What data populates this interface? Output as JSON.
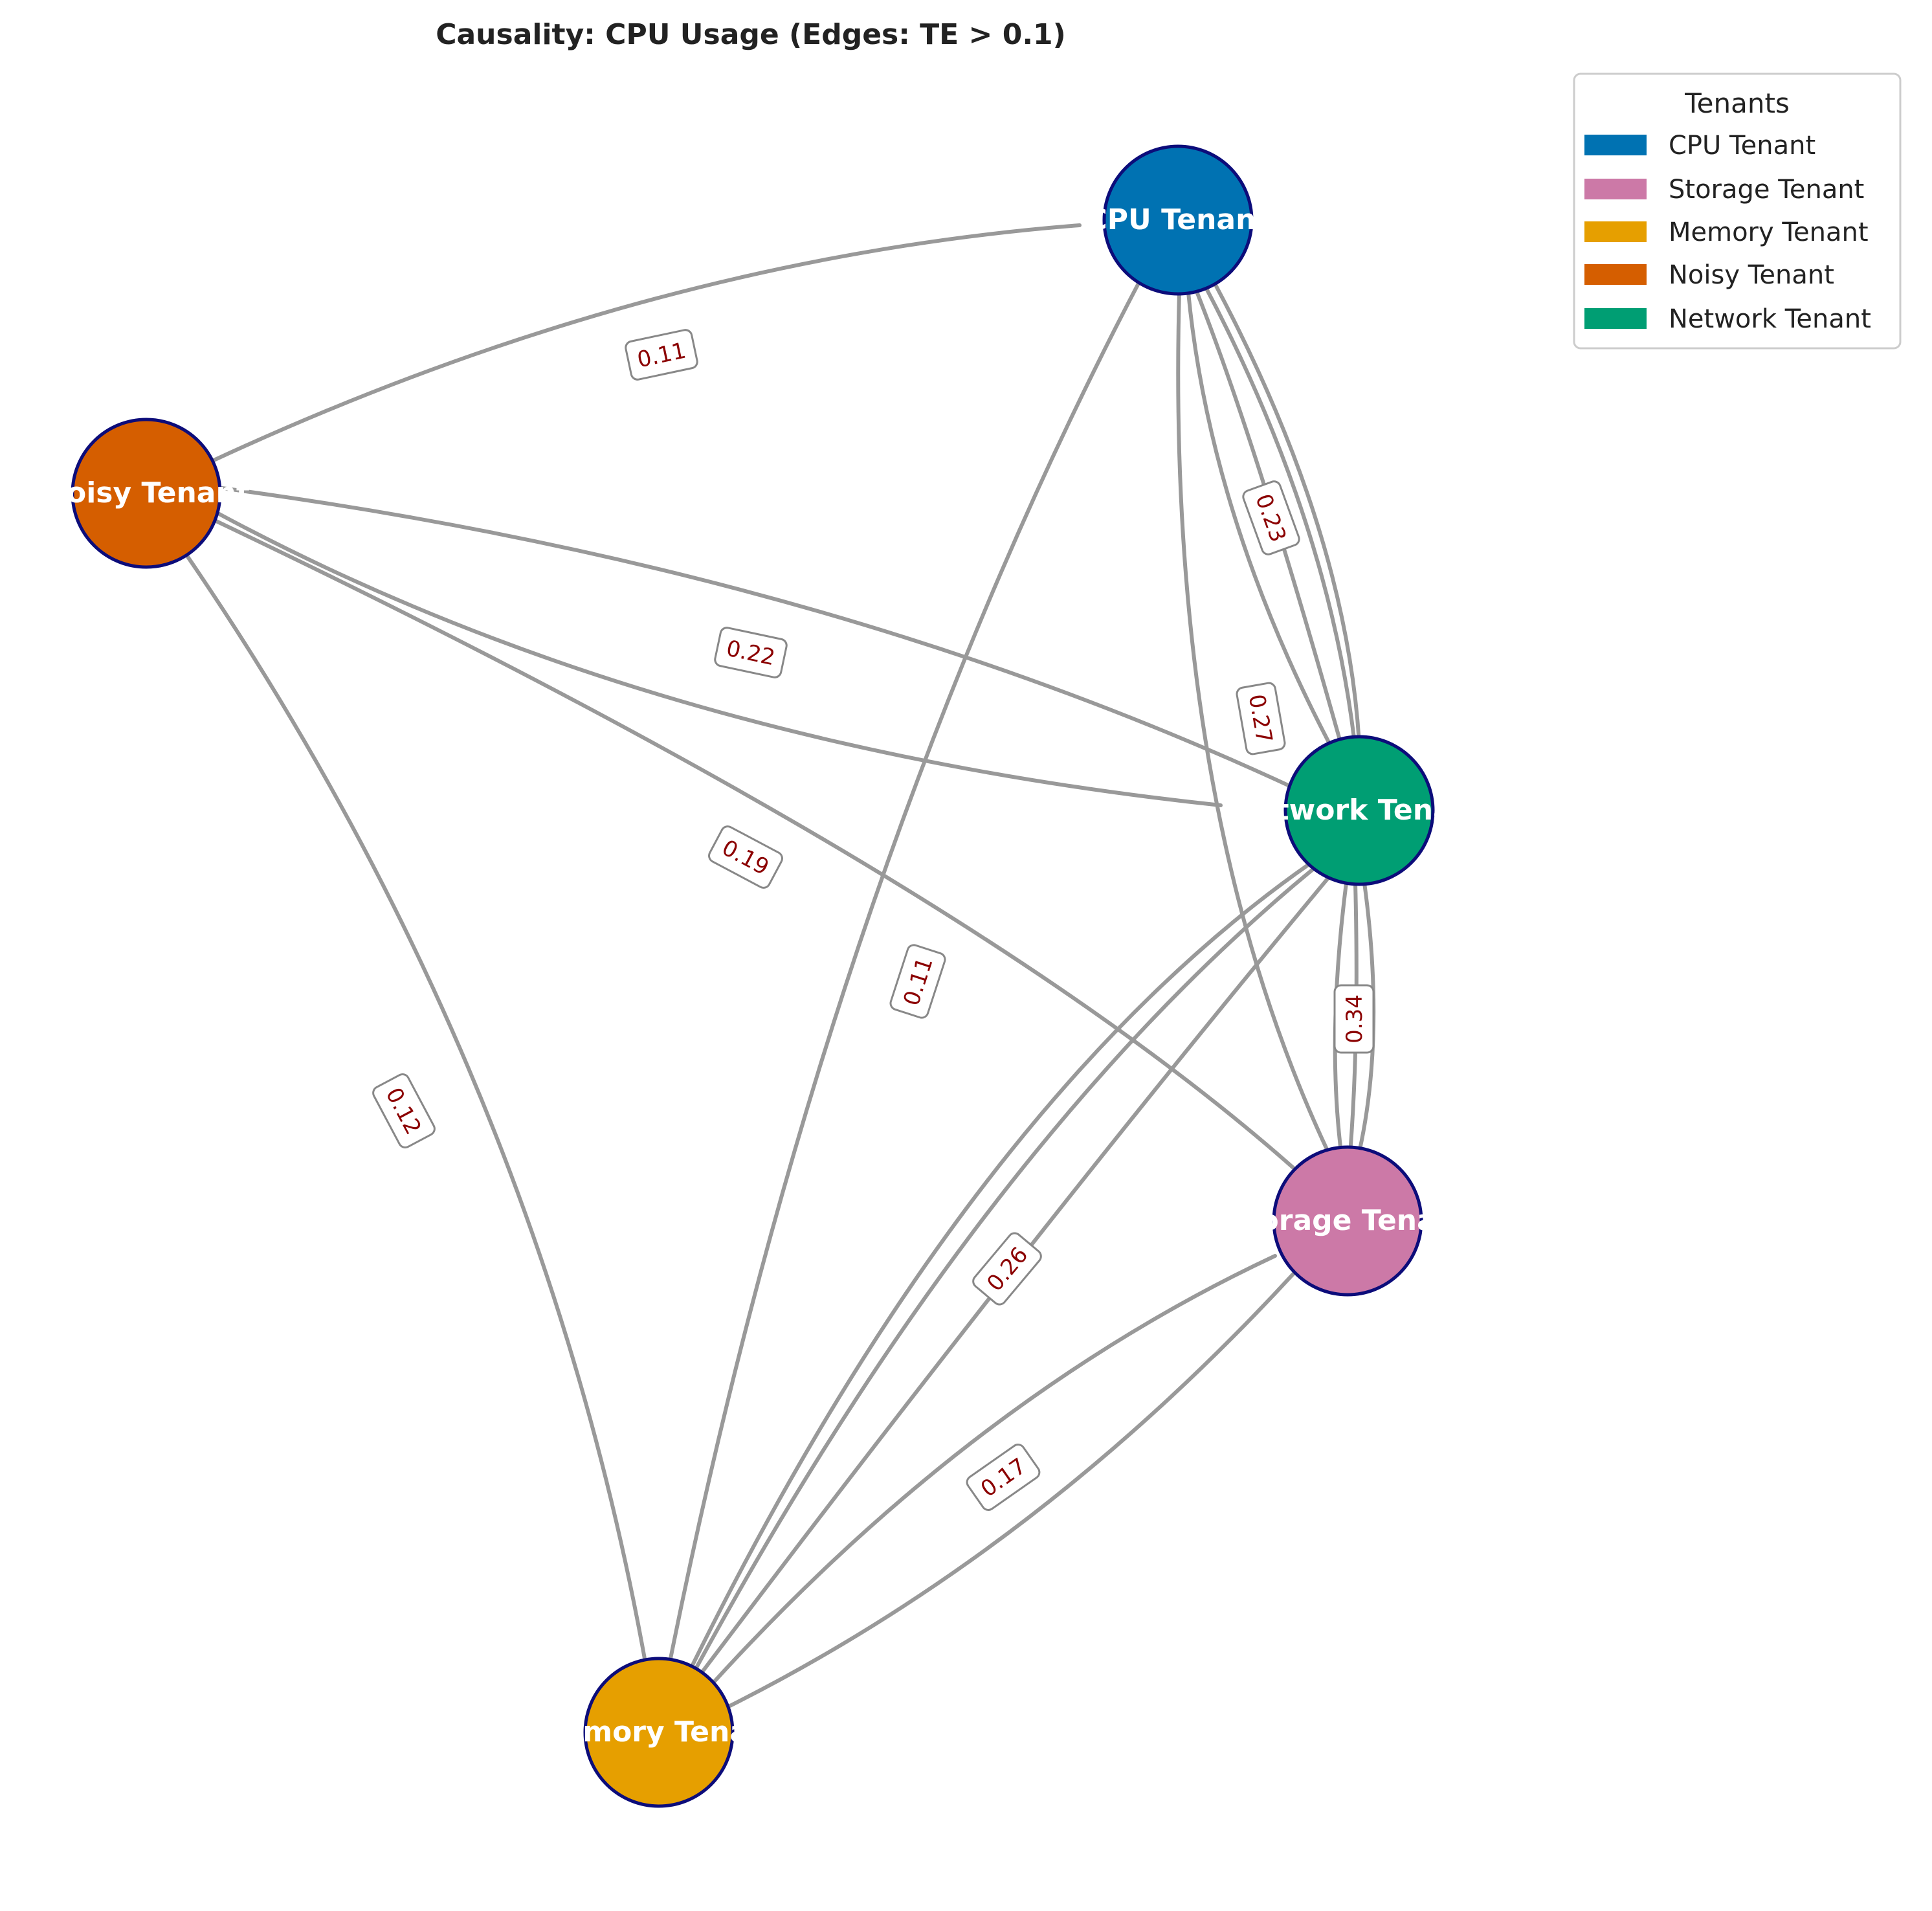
{
  "title": "Causality: CPU Usage (Edges: TE > 0.1)",
  "legend": {
    "title": "Tenants",
    "items": [
      {
        "label": "CPU Tenant",
        "color": "#0072b2"
      },
      {
        "label": "Storage Tenant",
        "color": "#cc79a7"
      },
      {
        "label": "Memory Tenant",
        "color": "#e69f00"
      },
      {
        "label": "Noisy Tenant",
        "color": "#d55e00"
      },
      {
        "label": "Network Tenant",
        "color": "#009e73"
      }
    ]
  },
  "nodes": [
    {
      "id": "cpu",
      "label": "CPU Tenant",
      "color": "#0072b2"
    },
    {
      "id": "noisy",
      "label": "Noisy Tenant",
      "color": "#d55e00"
    },
    {
      "id": "network",
      "label": "Network Tenant",
      "color": "#009e73"
    },
    {
      "id": "storage",
      "label": "Storage Tenant",
      "color": "#cc79a7"
    },
    {
      "id": "memory",
      "label": "Memory Tenant",
      "color": "#e69f00"
    }
  ],
  "edge_labels": [
    {
      "id": "noisy-cpu",
      "value": "0.11"
    },
    {
      "id": "cpu-network",
      "value": "0.23"
    },
    {
      "id": "noisy-network",
      "value": "0.22"
    },
    {
      "id": "cpu-storage",
      "value": "0.27"
    },
    {
      "id": "noisy-storage",
      "value": "0.19"
    },
    {
      "id": "cpu-memory",
      "value": "0.11"
    },
    {
      "id": "network-storage",
      "value": "0.34"
    },
    {
      "id": "noisy-memory",
      "value": "0.12"
    },
    {
      "id": "network-memory",
      "value": "0.26"
    },
    {
      "id": "storage-memory",
      "value": "0.17"
    }
  ]
}
